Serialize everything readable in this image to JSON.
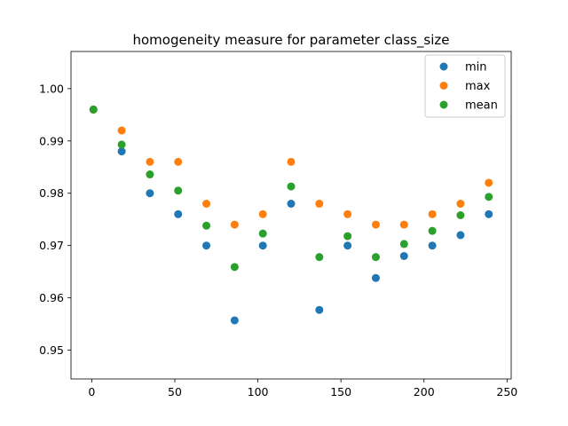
{
  "chart_data": {
    "type": "scatter",
    "title": "homogeneity measure for parameter class_size",
    "xlabel": "",
    "ylabel": "",
    "xlim": [
      -12.5,
      252.5
    ],
    "ylim": [
      0.9445,
      1.0071
    ],
    "x_ticks": [
      0,
      50,
      100,
      150,
      200,
      250
    ],
    "y_ticks": [
      0.95,
      0.96,
      0.97,
      0.98,
      0.99,
      1.0
    ],
    "x_tick_labels": [
      "0",
      "50",
      "100",
      "150",
      "200",
      "250"
    ],
    "y_tick_labels": [
      "0.95",
      "0.96",
      "0.97",
      "0.98",
      "0.99",
      "1.00"
    ],
    "grid": false,
    "legend_position": "top-right",
    "x": [
      1,
      18,
      35,
      52,
      69,
      86,
      103,
      120,
      137,
      154,
      171,
      188,
      205,
      222,
      239
    ],
    "series": [
      {
        "name": "min",
        "color": "#1f77b4",
        "values": [
          0.996,
          0.988,
          0.98,
          0.976,
          0.97,
          0.9557,
          0.97,
          0.978,
          0.9577,
          0.97,
          0.9638,
          0.968,
          0.97,
          0.972,
          0.976
        ]
      },
      {
        "name": "max",
        "color": "#ff7f0e",
        "values": [
          0.996,
          0.992,
          0.986,
          0.986,
          0.978,
          0.974,
          0.976,
          0.986,
          0.978,
          0.976,
          0.974,
          0.974,
          0.976,
          0.978,
          0.982
        ]
      },
      {
        "name": "mean",
        "color": "#2ca02c",
        "values": [
          0.996,
          0.9893,
          0.9836,
          0.9805,
          0.9738,
          0.9659,
          0.9723,
          0.9813,
          0.9678,
          0.9718,
          0.9678,
          0.9703,
          0.9728,
          0.9758,
          0.9793
        ]
      }
    ]
  }
}
